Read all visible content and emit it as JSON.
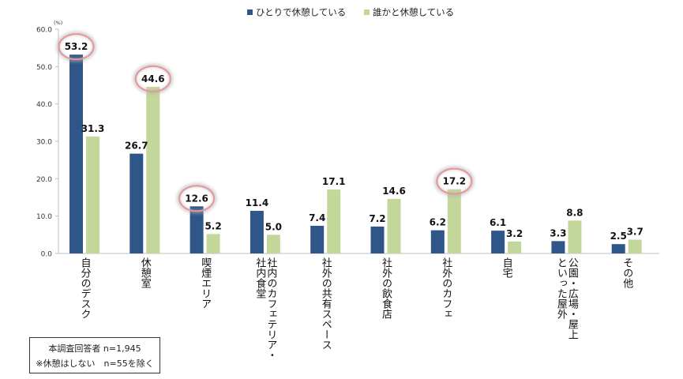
{
  "chart_data": {
    "type": "bar",
    "unit_label": "(%)",
    "categories": [
      "自分のデスク",
      "休憩室",
      "喫煙エリア",
      "社内のカフェテリア・社内食堂",
      "社外の共有スペース",
      "社外の飲食店",
      "社外のカフェ",
      "自宅",
      "公園・広場・屋上といった屋外",
      "その他"
    ],
    "category_lines": [
      [
        "自分のデスク"
      ],
      [
        "休憩室"
      ],
      [
        "喫煙エリア"
      ],
      [
        "社内のカフェテリア・",
        "社内食堂"
      ],
      [
        "社外の共有スペース"
      ],
      [
        "社外の飲食店"
      ],
      [
        "社外のカフェ"
      ],
      [
        "自宅"
      ],
      [
        "公園・広場・屋上",
        "といった屋外"
      ],
      [
        "その他"
      ]
    ],
    "series": [
      {
        "name": "ひとりで休憩している",
        "color": "#2f5689",
        "values": [
          53.2,
          26.7,
          12.6,
          11.4,
          7.4,
          7.2,
          6.2,
          6.1,
          3.3,
          2.5
        ]
      },
      {
        "name": "誰かと休憩している",
        "color": "#c4d79b",
        "values": [
          31.3,
          44.6,
          5.2,
          5.0,
          17.1,
          14.6,
          17.2,
          3.2,
          8.8,
          3.7
        ]
      }
    ],
    "ylim": [
      0,
      60
    ],
    "yticks": [
      "0.0",
      "10.0",
      "20.0",
      "30.0",
      "40.0",
      "50.0",
      "60.0"
    ],
    "legend_position": "top-center",
    "grid": false,
    "highlighted": [
      {
        "category": "自分のデスク",
        "series": 0
      },
      {
        "category": "休憩室",
        "series": 1
      },
      {
        "category": "喫煙エリア",
        "series": 0
      },
      {
        "category": "社外のカフェ",
        "series": 1
      }
    ],
    "highlight_color": "#e8949b"
  },
  "note": {
    "line1": "本調査回答者 n=1,945",
    "line2": "※休憩はしない　n=55を除く"
  }
}
